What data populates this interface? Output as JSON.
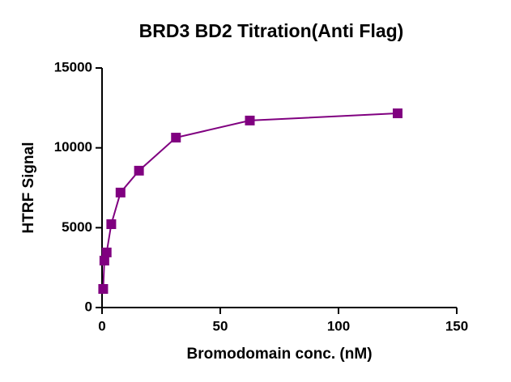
{
  "chart_data": {
    "type": "line",
    "title": "BRD3 BD2 Titration(Anti Flag)",
    "x_label": "Bromodomain conc. (nM)",
    "y_label": "HTRF Signal",
    "x": [
      0.488,
      0.977,
      1.953,
      3.906,
      7.8125,
      15.625,
      31.25,
      62.5,
      125
    ],
    "series": [
      {
        "name": "BRD3 BD2",
        "color": "#800080",
        "values": [
          1165,
          2940,
          3450,
          5220,
          7200,
          8570,
          10640,
          11710,
          12160
        ]
      }
    ],
    "xlim": [
      0,
      150
    ],
    "xticks": [
      0,
      50,
      100,
      150
    ],
    "ylim": [
      0,
      15000
    ],
    "yticks": [
      0,
      5000,
      10000,
      15000
    ],
    "grid": false
  }
}
